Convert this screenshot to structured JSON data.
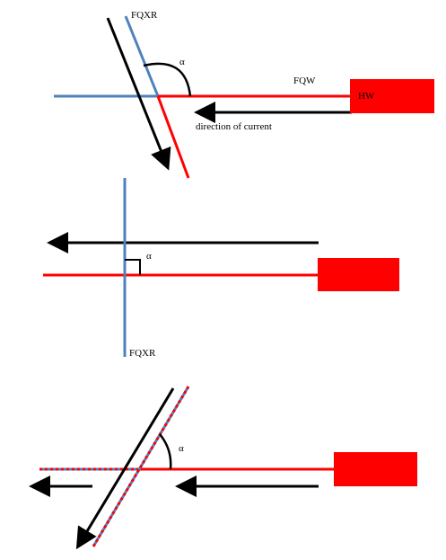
{
  "panel1": {
    "label_fqxr": "FQXR",
    "label_alpha": "α",
    "label_fqw": "FQW",
    "label_hw": "HW",
    "label_direction": "direction of current"
  },
  "panel2": {
    "label_alpha": "α",
    "label_fqxr": "FQXR"
  },
  "panel3": {
    "label_alpha": "α"
  },
  "colors": {
    "red": "#ff0000",
    "blue": "#4f81bd",
    "black": "#000000"
  }
}
